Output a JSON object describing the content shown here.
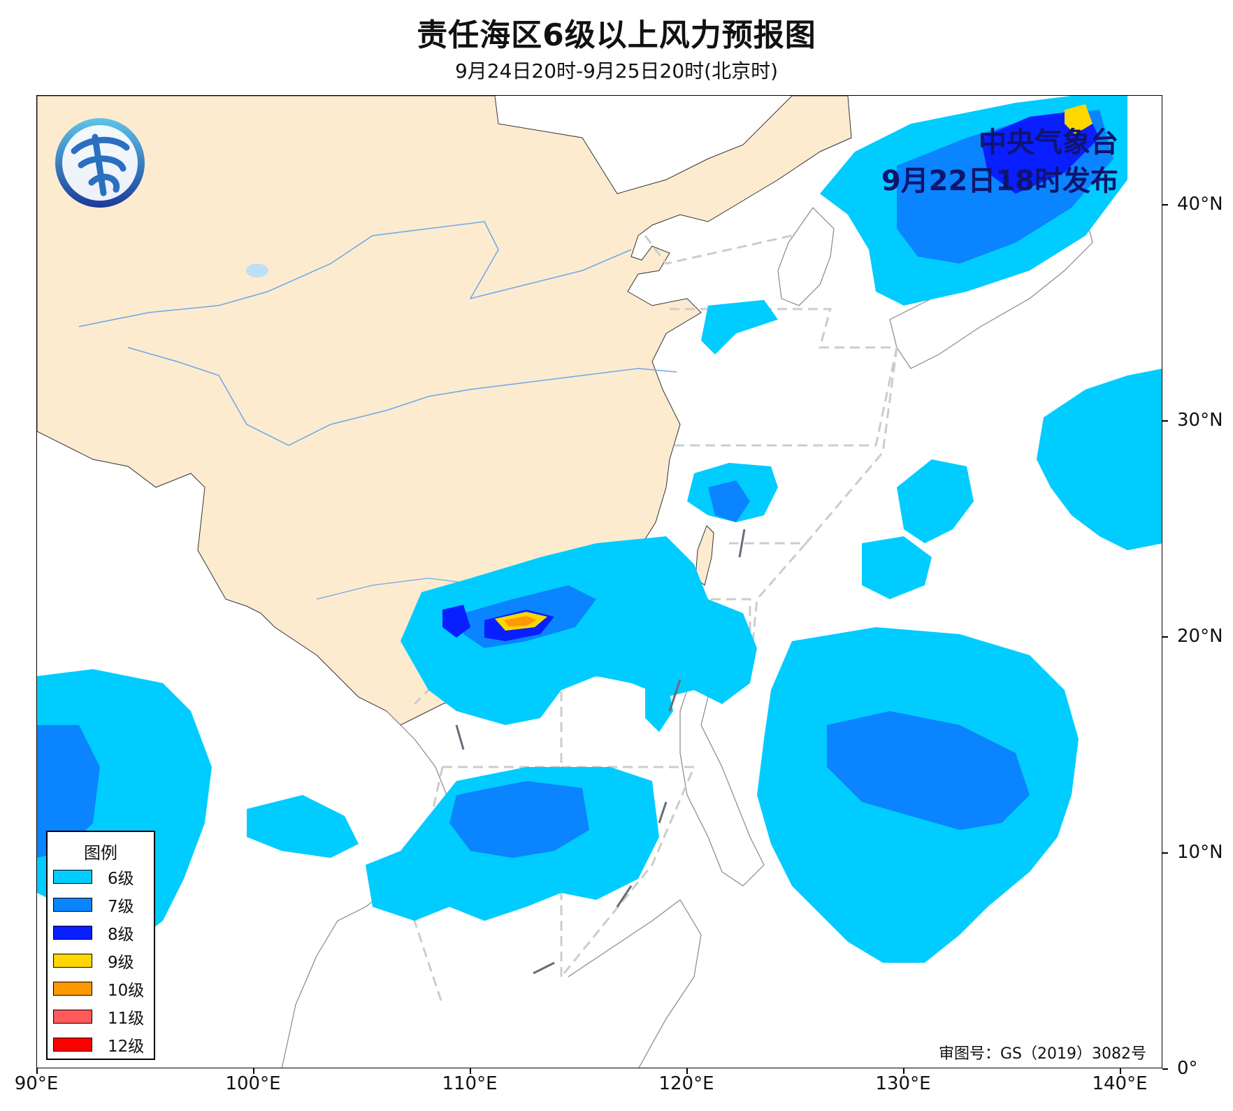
{
  "title": "责任海区6级以上风力预报图",
  "subtitle": "9月24日20时-9月25日20时(北京时)",
  "issuer": {
    "name": "中央气象台",
    "issued": "9月22日18时发布"
  },
  "approval_number": "审图号：GS（2019）3082号",
  "axes": {
    "x_ticks": [
      "90°E",
      "100°E",
      "110°E",
      "120°E",
      "130°E",
      "140°E"
    ],
    "y_ticks": [
      "0°",
      "10°N",
      "20°N",
      "30°N",
      "40°N"
    ]
  },
  "legend": {
    "title": "图例",
    "items": [
      {
        "label": "6级",
        "color": "#00ccff"
      },
      {
        "label": "7级",
        "color": "#0a84ff"
      },
      {
        "label": "8级",
        "color": "#0a1fff"
      },
      {
        "label": "9级",
        "color": "#ffd700"
      },
      {
        "label": "10级",
        "color": "#ff9900"
      },
      {
        "label": "11级",
        "color": "#ff5a5a"
      },
      {
        "label": "12级",
        "color": "#ff0000"
      }
    ]
  },
  "colors": {
    "land_china": "#fdebd0",
    "river": "#6aa8e8",
    "sea_area_boundary": "#cccccc"
  }
}
